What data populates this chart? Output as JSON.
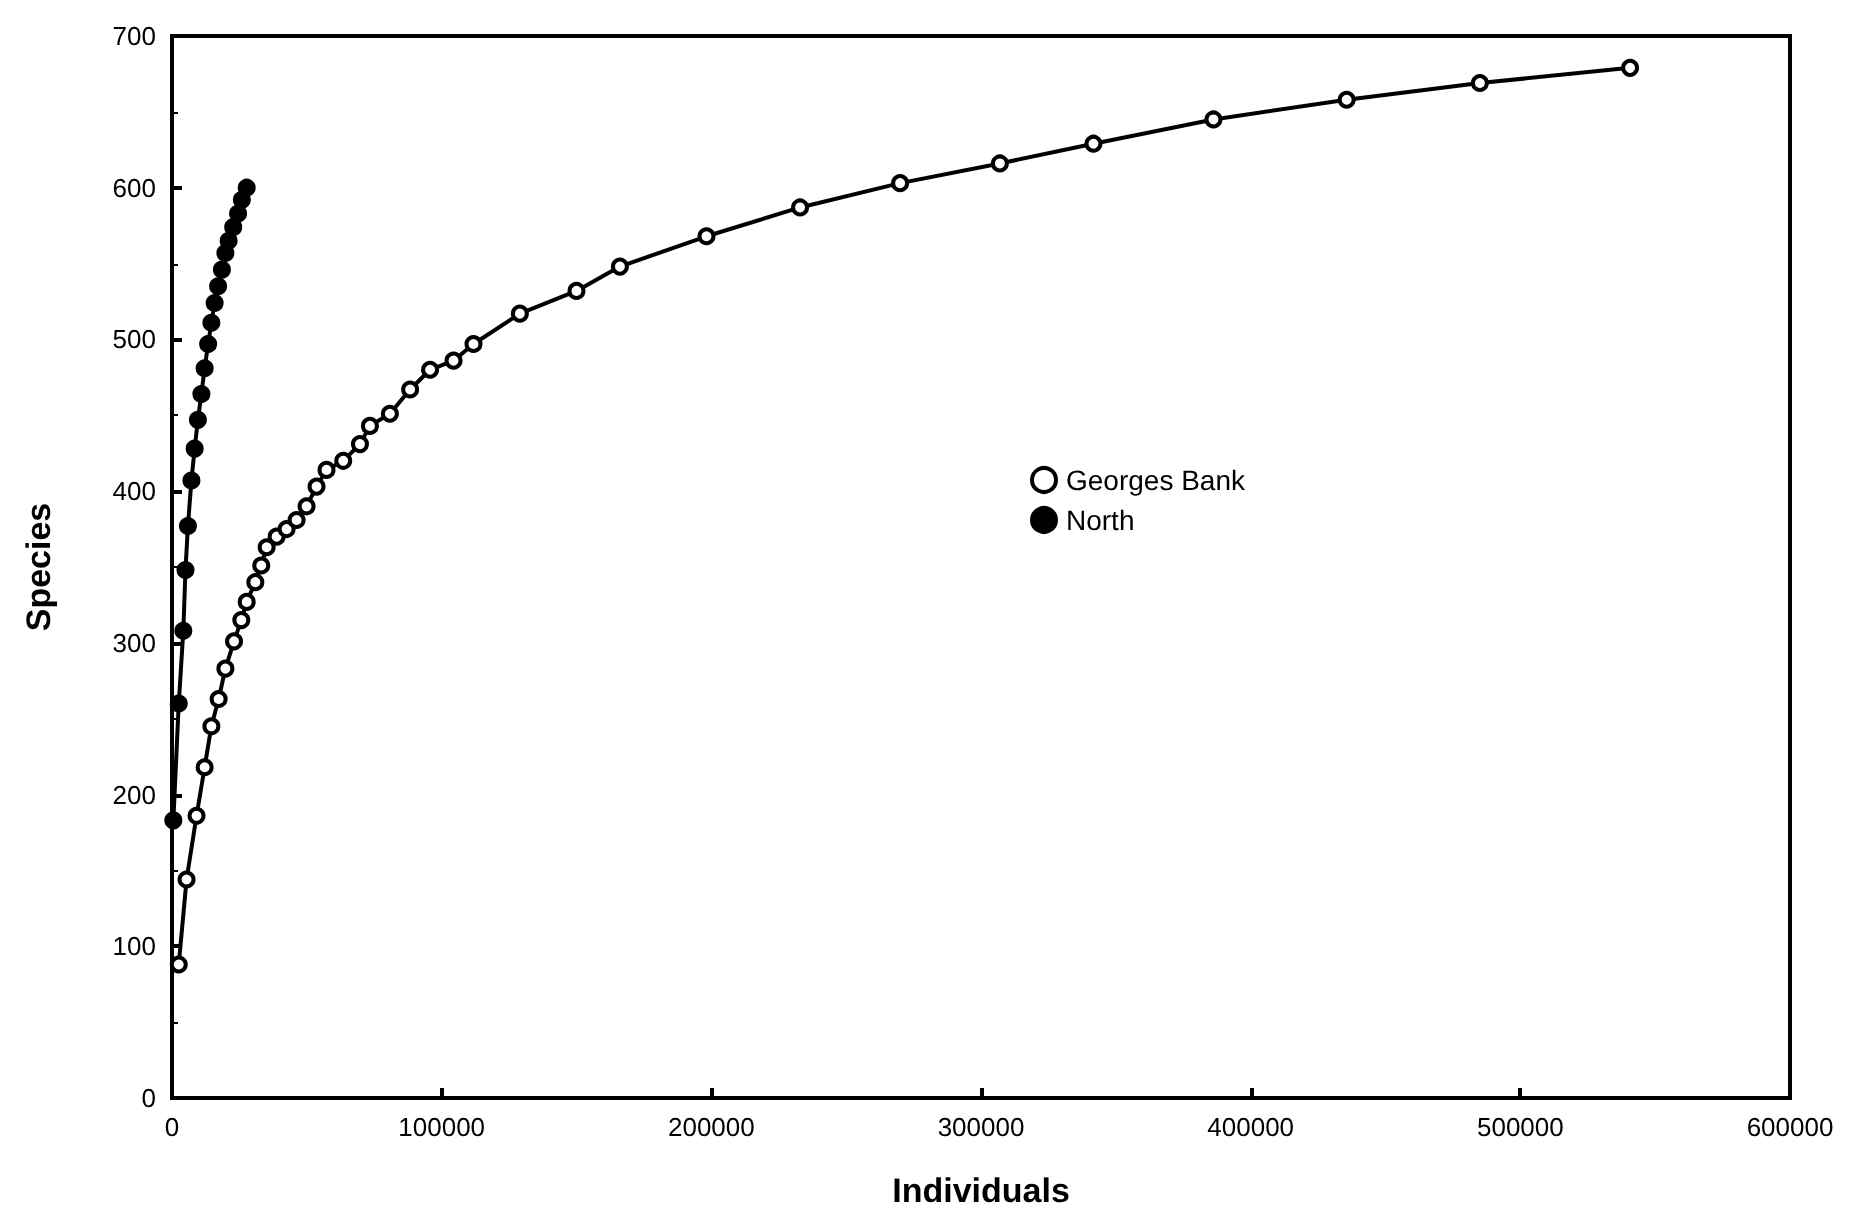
{
  "chart_data": {
    "type": "line",
    "xlabel": "Individuals",
    "ylabel": "Species",
    "xlim": [
      0,
      600000
    ],
    "xticks": [
      0,
      100000,
      200000,
      300000,
      400000,
      500000,
      600000
    ],
    "ylim": [
      0,
      700
    ],
    "yticks": [
      0,
      100,
      200,
      300,
      400,
      500,
      600,
      700
    ],
    "grid": false,
    "legend": "right",
    "line_style": "solid",
    "series": [
      {
        "name": "Georges Bank",
        "color": "#000000",
        "marker": "circle",
        "x": [
          2500,
          5400,
          9100,
          12100,
          14600,
          17300,
          19800,
          23000,
          25700,
          27700,
          30900,
          33100,
          35100,
          38800,
          42500,
          46200,
          49900,
          53600,
          57300,
          63500,
          69700,
          73400,
          80800,
          88300,
          95700,
          104400,
          111800,
          129000,
          150000,
          166100,
          198200,
          232900,
          270000,
          307000,
          341700,
          386200,
          435600,
          485000,
          540700
        ],
        "values": [
          88,
          144,
          186,
          218,
          245,
          263,
          283,
          301,
          315,
          327,
          340,
          351,
          363,
          370,
          375,
          381,
          390,
          403,
          414,
          420,
          431,
          443,
          451,
          467,
          480,
          486,
          497,
          517,
          532,
          548,
          568,
          587,
          603,
          616,
          629,
          645,
          658,
          669,
          679
        ]
      },
      {
        "name": "North",
        "color": "#000000",
        "marker": "circle",
        "x": [
          500,
          2500,
          4200,
          5000,
          5900,
          7200,
          8400,
          9600,
          10900,
          12100,
          13400,
          14600,
          15800,
          17100,
          18500,
          19800,
          21000,
          22700,
          24500,
          25900,
          27700
        ],
        "values": [
          183,
          260,
          308,
          348,
          377,
          407,
          428,
          447,
          464,
          481,
          497,
          511,
          524,
          535,
          546,
          557,
          565,
          574,
          583,
          592,
          600
        ]
      }
    ]
  }
}
